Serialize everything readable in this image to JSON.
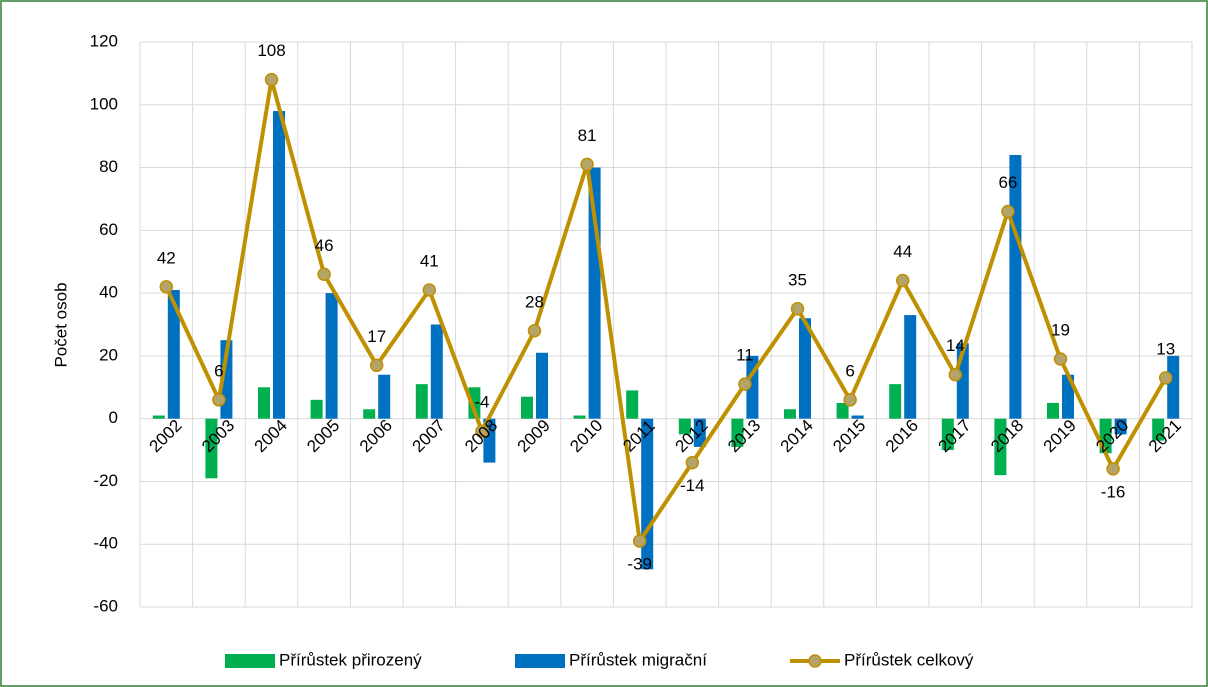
{
  "chart_data": {
    "type": "combo",
    "y_axis_label": "Počet osob",
    "categories": [
      "2002",
      "2003",
      "2004",
      "2005",
      "2006",
      "2007",
      "2008",
      "2009",
      "2010",
      "2011",
      "2012",
      "2013",
      "2014",
      "2015",
      "2016",
      "2017",
      "2018",
      "2019",
      "2020",
      "2021"
    ],
    "series": [
      {
        "name": "Přírůstek přirozený",
        "type": "bar",
        "color": "#00b050",
        "values": [
          1,
          -19,
          10,
          6,
          3,
          11,
          10,
          7,
          1,
          9,
          -5,
          -9,
          3,
          5,
          11,
          -10,
          -18,
          5,
          -11,
          -7
        ]
      },
      {
        "name": "Přírůstek migrační",
        "type": "bar",
        "color": "#0070c0",
        "values": [
          41,
          25,
          98,
          40,
          14,
          30,
          -14,
          21,
          80,
          -48,
          -9,
          20,
          32,
          1,
          33,
          24,
          84,
          14,
          -5,
          20
        ]
      },
      {
        "name": "Přírůstek celkový",
        "type": "line",
        "color": "#bf9000",
        "marker_color": "#b5a46a",
        "values": [
          42,
          6,
          108,
          46,
          17,
          41,
          -4,
          28,
          81,
          -39,
          -14,
          11,
          35,
          6,
          44,
          14,
          66,
          19,
          -16,
          13
        ]
      }
    ],
    "ylim": [
      -60,
      120
    ],
    "yticks": [
      -60,
      -40,
      -20,
      0,
      20,
      40,
      60,
      80,
      100,
      120
    ],
    "grid": true,
    "legend": "bottom"
  }
}
